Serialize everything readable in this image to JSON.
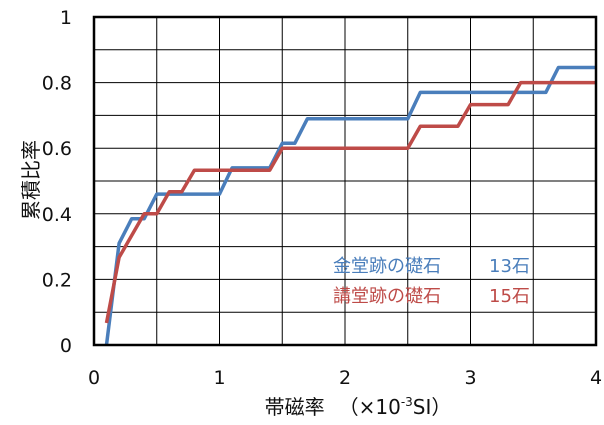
{
  "chart_data": {
    "type": "line",
    "xlabel": "帯磁率",
    "xlabel_unit_prefix": "（×10",
    "xlabel_unit_exp": "-3",
    "xlabel_unit_suffix": "SI）",
    "ylabel": "累積比率",
    "xlim": [
      0,
      4
    ],
    "ylim": [
      0,
      1
    ],
    "x_ticks": [
      "0",
      "1",
      "2",
      "3",
      "4"
    ],
    "y_ticks": [
      "0",
      "0.2",
      "0.4",
      "0.6",
      "0.8",
      "1"
    ],
    "grid": true,
    "legend_position": "lower-right",
    "series": [
      {
        "name": "金堂跡の礎石",
        "count": "13石",
        "color": "#4a7ebb",
        "x": [
          0.1,
          0.2,
          0.3,
          0.4,
          0.5,
          0.6,
          1.0,
          1.1,
          1.4,
          1.5,
          1.6,
          1.7,
          2.5,
          2.6,
          3.6,
          3.7,
          4.0
        ],
        "y": [
          0.0,
          0.31,
          0.385,
          0.385,
          0.46,
          0.46,
          0.46,
          0.54,
          0.54,
          0.615,
          0.615,
          0.69,
          0.69,
          0.77,
          0.77,
          0.846,
          0.846
        ]
      },
      {
        "name": "講堂跡の礎石",
        "count": "15石",
        "color": "#be4b48",
        "x": [
          0.1,
          0.2,
          0.4,
          0.5,
          0.6,
          0.7,
          0.8,
          1.0,
          1.1,
          1.4,
          1.5,
          2.5,
          2.6,
          2.9,
          3.0,
          3.3,
          3.4,
          4.0
        ],
        "y": [
          0.067,
          0.267,
          0.4,
          0.4,
          0.467,
          0.467,
          0.533,
          0.533,
          0.533,
          0.533,
          0.6,
          0.6,
          0.667,
          0.667,
          0.733,
          0.733,
          0.8,
          0.8
        ]
      }
    ]
  }
}
